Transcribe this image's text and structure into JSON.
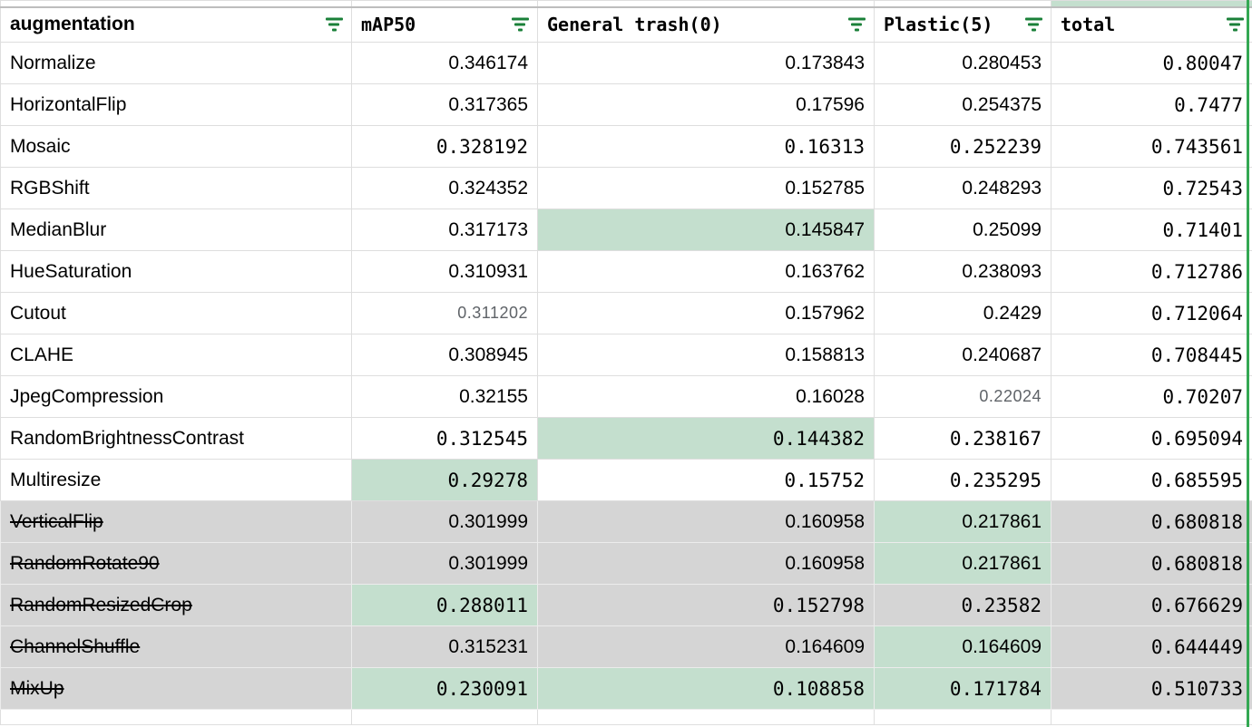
{
  "header": {
    "columns": [
      {
        "label": "augmentation"
      },
      {
        "label": "mAP50"
      },
      {
        "label": "General trash(0)"
      },
      {
        "label": "Plastic(5)"
      },
      {
        "label": "total"
      }
    ]
  },
  "table": {
    "rows": [
      {
        "name": "Normalize",
        "struck": false,
        "excluded": false,
        "cells": [
          {
            "value": "0.346174",
            "font": "sans",
            "highlight": false,
            "muted": false
          },
          {
            "value": "0.173843",
            "font": "sans",
            "highlight": false,
            "muted": false
          },
          {
            "value": "0.280453",
            "font": "sans",
            "highlight": false,
            "muted": false
          },
          {
            "value": "0.80047",
            "font": "mono",
            "highlight": false,
            "muted": false
          }
        ]
      },
      {
        "name": "HorizontalFlip",
        "struck": false,
        "excluded": false,
        "cells": [
          {
            "value": "0.317365",
            "font": "sans",
            "highlight": false,
            "muted": false
          },
          {
            "value": "0.17596",
            "font": "sans",
            "highlight": false,
            "muted": false
          },
          {
            "value": "0.254375",
            "font": "sans",
            "highlight": false,
            "muted": false
          },
          {
            "value": "0.7477",
            "font": "mono",
            "highlight": false,
            "muted": false
          }
        ]
      },
      {
        "name": "Mosaic",
        "struck": false,
        "excluded": false,
        "cells": [
          {
            "value": "0.328192",
            "font": "mono",
            "highlight": false,
            "muted": false
          },
          {
            "value": "0.16313",
            "font": "mono",
            "highlight": false,
            "muted": false
          },
          {
            "value": "0.252239",
            "font": "mono",
            "highlight": false,
            "muted": false
          },
          {
            "value": "0.743561",
            "font": "mono",
            "highlight": false,
            "muted": false
          }
        ]
      },
      {
        "name": "RGBShift",
        "struck": false,
        "excluded": false,
        "cells": [
          {
            "value": "0.324352",
            "font": "sans",
            "highlight": false,
            "muted": false
          },
          {
            "value": "0.152785",
            "font": "sans",
            "highlight": false,
            "muted": false
          },
          {
            "value": "0.248293",
            "font": "sans",
            "highlight": false,
            "muted": false
          },
          {
            "value": "0.72543",
            "font": "mono",
            "highlight": false,
            "muted": false
          }
        ]
      },
      {
        "name": "MedianBlur",
        "struck": false,
        "excluded": false,
        "cells": [
          {
            "value": "0.317173",
            "font": "sans",
            "highlight": false,
            "muted": false
          },
          {
            "value": "0.145847",
            "font": "sans",
            "highlight": true,
            "muted": false
          },
          {
            "value": "0.25099",
            "font": "sans",
            "highlight": false,
            "muted": false
          },
          {
            "value": "0.71401",
            "font": "mono",
            "highlight": false,
            "muted": false
          }
        ]
      },
      {
        "name": "HueSaturation",
        "struck": false,
        "excluded": false,
        "cells": [
          {
            "value": "0.310931",
            "font": "sans",
            "highlight": false,
            "muted": false
          },
          {
            "value": "0.163762",
            "font": "sans",
            "highlight": false,
            "muted": false
          },
          {
            "value": "0.238093",
            "font": "sans",
            "highlight": false,
            "muted": false
          },
          {
            "value": "0.712786",
            "font": "mono",
            "highlight": false,
            "muted": false
          }
        ]
      },
      {
        "name": "Cutout",
        "struck": false,
        "excluded": false,
        "cells": [
          {
            "value": "0.311202",
            "font": "sans",
            "highlight": false,
            "muted": true
          },
          {
            "value": "0.157962",
            "font": "sans",
            "highlight": false,
            "muted": false
          },
          {
            "value": "0.2429",
            "font": "sans",
            "highlight": false,
            "muted": false
          },
          {
            "value": "0.712064",
            "font": "mono",
            "highlight": false,
            "muted": false
          }
        ]
      },
      {
        "name": "CLAHE",
        "struck": false,
        "excluded": false,
        "cells": [
          {
            "value": "0.308945",
            "font": "sans",
            "highlight": false,
            "muted": false
          },
          {
            "value": "0.158813",
            "font": "sans",
            "highlight": false,
            "muted": false
          },
          {
            "value": "0.240687",
            "font": "sans",
            "highlight": false,
            "muted": false
          },
          {
            "value": "0.708445",
            "font": "mono",
            "highlight": false,
            "muted": false
          }
        ]
      },
      {
        "name": "JpegCompression",
        "struck": false,
        "excluded": false,
        "cells": [
          {
            "value": "0.32155",
            "font": "sans",
            "highlight": false,
            "muted": false
          },
          {
            "value": "0.16028",
            "font": "sans",
            "highlight": false,
            "muted": false
          },
          {
            "value": "0.22024",
            "font": "sans",
            "highlight": false,
            "muted": true
          },
          {
            "value": "0.70207",
            "font": "mono",
            "highlight": false,
            "muted": false
          }
        ]
      },
      {
        "name": "RandomBrightnessContrast",
        "struck": false,
        "excluded": false,
        "cells": [
          {
            "value": "0.312545",
            "font": "mono",
            "highlight": false,
            "muted": false
          },
          {
            "value": "0.144382",
            "font": "mono",
            "highlight": true,
            "muted": false
          },
          {
            "value": "0.238167",
            "font": "mono",
            "highlight": false,
            "muted": false
          },
          {
            "value": "0.695094",
            "font": "mono",
            "highlight": false,
            "muted": false
          }
        ]
      },
      {
        "name": "Multiresize",
        "struck": false,
        "excluded": false,
        "cells": [
          {
            "value": "0.29278",
            "font": "mono",
            "highlight": true,
            "muted": false
          },
          {
            "value": "0.15752",
            "font": "mono",
            "highlight": false,
            "muted": false
          },
          {
            "value": "0.235295",
            "font": "mono",
            "highlight": false,
            "muted": false
          },
          {
            "value": "0.685595",
            "font": "mono",
            "highlight": false,
            "muted": false
          }
        ]
      },
      {
        "name": "VerticalFlip",
        "struck": true,
        "excluded": true,
        "cells": [
          {
            "value": "0.301999",
            "font": "sans",
            "highlight": false,
            "muted": false
          },
          {
            "value": "0.160958",
            "font": "sans",
            "highlight": false,
            "muted": false
          },
          {
            "value": "0.217861",
            "font": "sans",
            "highlight": true,
            "muted": false
          },
          {
            "value": "0.680818",
            "font": "mono",
            "highlight": false,
            "muted": false
          }
        ]
      },
      {
        "name": "RandomRotate90",
        "struck": true,
        "excluded": true,
        "cells": [
          {
            "value": "0.301999",
            "font": "sans",
            "highlight": false,
            "muted": false
          },
          {
            "value": "0.160958",
            "font": "sans",
            "highlight": false,
            "muted": false
          },
          {
            "value": "0.217861",
            "font": "sans",
            "highlight": true,
            "muted": false
          },
          {
            "value": "0.680818",
            "font": "mono",
            "highlight": false,
            "muted": false
          }
        ]
      },
      {
        "name": "RandomResizedCrop",
        "struck": true,
        "excluded": true,
        "cells": [
          {
            "value": "0.288011",
            "font": "mono",
            "highlight": true,
            "muted": false
          },
          {
            "value": "0.152798",
            "font": "mono",
            "highlight": false,
            "muted": false
          },
          {
            "value": "0.23582",
            "font": "mono",
            "highlight": false,
            "muted": false
          },
          {
            "value": "0.676629",
            "font": "mono",
            "highlight": false,
            "muted": false
          }
        ]
      },
      {
        "name": "ChannelShuffle",
        "struck": true,
        "excluded": true,
        "cells": [
          {
            "value": "0.315231",
            "font": "sans",
            "highlight": false,
            "muted": false
          },
          {
            "value": "0.164609",
            "font": "sans",
            "highlight": false,
            "muted": false
          },
          {
            "value": "0.164609",
            "font": "sans",
            "highlight": true,
            "muted": false
          },
          {
            "value": "0.644449",
            "font": "mono",
            "highlight": false,
            "muted": false
          }
        ]
      },
      {
        "name": "MixUp",
        "struck": true,
        "excluded": true,
        "cells": [
          {
            "value": "0.230091",
            "font": "mono",
            "highlight": true,
            "muted": false
          },
          {
            "value": "0.108858",
            "font": "mono",
            "highlight": true,
            "muted": false
          },
          {
            "value": "0.171784",
            "font": "mono",
            "highlight": true,
            "muted": false
          },
          {
            "value": "0.510733",
            "font": "mono",
            "highlight": false,
            "muted": false
          }
        ]
      }
    ]
  },
  "colors": {
    "highlight_green": "#c4dfce",
    "excluded_row_gray": "#d5d5d5",
    "filter_icon_green": "#1a8038",
    "range_border_green": "#34a853",
    "muted_text": "#5f6368"
  }
}
